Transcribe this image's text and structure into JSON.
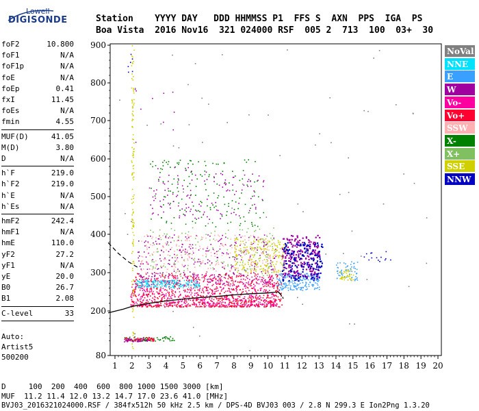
{
  "logo": {
    "top": "Lowell",
    "main": "DIGISONDE"
  },
  "header": {
    "line1": "Station    YYYY DAY   DDD HHMMSS P1  FFS S  AXN  PPS  IGA  PS",
    "line2": "Boa Vista  2016 Nov16  321 024000 RSF  005 2  713  100  03+  30"
  },
  "params": {
    "group1": [
      {
        "name": "foF2",
        "value": "10.800"
      },
      {
        "name": "foF1",
        "value": "N/A"
      },
      {
        "name": "foF1p",
        "value": "N/A"
      },
      {
        "name": "foE",
        "value": "N/A"
      },
      {
        "name": "foEp",
        "value": "0.41"
      },
      {
        "name": "fxI",
        "value": "11.45"
      },
      {
        "name": "foEs",
        "value": "N/A"
      },
      {
        "name": "fmin",
        "value": "4.55"
      }
    ],
    "group2": [
      {
        "name": "MUF(D)",
        "value": "41.05"
      },
      {
        "name": "M(D)",
        "value": "3.80"
      },
      {
        "name": "D",
        "value": "N/A"
      }
    ],
    "group3": [
      {
        "name": "h`F",
        "value": "219.0"
      },
      {
        "name": "h`F2",
        "value": "219.0"
      },
      {
        "name": "h`E",
        "value": "N/A"
      },
      {
        "name": "h`Es",
        "value": "N/A"
      }
    ],
    "group4": [
      {
        "name": "hmF2",
        "value": "242.4"
      },
      {
        "name": "hmF1",
        "value": "N/A"
      },
      {
        "name": "hmE",
        "value": "110.0"
      },
      {
        "name": "yF2",
        "value": "27.2"
      },
      {
        "name": "yF1",
        "value": "N/A"
      },
      {
        "name": "yE",
        "value": "20.0"
      },
      {
        "name": "B0",
        "value": "26.7"
      },
      {
        "name": "B1",
        "value": "2.08"
      }
    ],
    "group5": [
      {
        "name": "C-level",
        "value": "33"
      }
    ]
  },
  "autoscaling": {
    "line1": "Auto:",
    "line2": "Artist5",
    "line3": "500200"
  },
  "footer": {
    "d_line": "D     100  200  400  600  800 1000 1500 3000 [km]",
    "muf_line": "MUF  11.2 11.4 12.0 13.2 14.7 17.0 23.6 41.0 [MHz]",
    "info_line": "BVJ03_2016321024000.RSF / 384fx512h 50 kHz 2.5 km / DPS-4D BVJ03 003 / 2.8 N 299.3 E Ion2Png 1.3.20"
  },
  "legend": [
    {
      "label": "NoVal",
      "bg": "#808080",
      "fg": "#ffffff"
    },
    {
      "label": "NNE",
      "bg": "#00e0ff",
      "fg": "#ffffff"
    },
    {
      "label": "E",
      "bg": "#3aa0ff",
      "fg": "#ffffff"
    },
    {
      "label": "W",
      "bg": "#a000a0",
      "fg": "#ffffff"
    },
    {
      "label": "Vo-",
      "bg": "#ff00a0",
      "fg": "#ffffff"
    },
    {
      "label": "Vo+",
      "bg": "#ff0030",
      "fg": "#ffffff"
    },
    {
      "label": "SSW",
      "bg": "#ffb0b0",
      "fg": "#ffffff"
    },
    {
      "label": "X-",
      "bg": "#008000",
      "fg": "#ffffff"
    },
    {
      "label": "X+",
      "bg": "#80c060",
      "fg": "#ffffff"
    },
    {
      "label": "SSE",
      "bg": "#d0d000",
      "fg": "#ffffff"
    },
    {
      "label": "NNW",
      "bg": "#0000c0",
      "fg": "#ffffff"
    }
  ],
  "chart_data": {
    "type": "scatter",
    "xlabel": "",
    "ylabel": "",
    "xlim": [
      0.6,
      20.1
    ],
    "ylim": [
      80,
      900
    ],
    "x_ticks": [
      "1",
      "2",
      "3",
      "4",
      "5",
      "6",
      "7",
      "8",
      "9",
      "10",
      "11",
      "12",
      "13",
      "14",
      "15",
      "16",
      "17",
      "18",
      "19",
      "20"
    ],
    "y_ticks": [
      "80",
      "200",
      "300",
      "400",
      "500",
      "600",
      "700",
      "800",
      "900"
    ],
    "grid": false,
    "legend_placement": "right",
    "trace_curve": {
      "x": [
        0.6,
        1.5,
        2.0,
        3.0,
        4.0,
        5.0,
        6.0,
        7.0,
        8.0,
        9.0,
        10.0,
        10.6,
        10.8
      ],
      "y": [
        195,
        205,
        212,
        220,
        226,
        231,
        235,
        238,
        242,
        245,
        247,
        250,
        240
      ]
    },
    "dashed_curves": [
      {
        "x": [
          0.6,
          1.2,
          1.8,
          2.4
        ],
        "y": [
          378,
          350,
          328,
          312
        ]
      },
      {
        "x": [
          10.6,
          10.75,
          10.85,
          10.9
        ],
        "y": [
          250,
          244,
          238,
          232
        ]
      }
    ],
    "clusters": [
      {
        "color": "#ff0030",
        "xr": [
          1.9,
          10.8
        ],
        "yr": [
          212,
          300
        ],
        "n": 900
      },
      {
        "color": "#ff00a0",
        "xr": [
          1.9,
          10.5
        ],
        "yr": [
          215,
          295
        ],
        "n": 500
      },
      {
        "color": "#00e0ff",
        "xr": [
          2.2,
          6.0
        ],
        "yr": [
          262,
          282
        ],
        "n": 180
      },
      {
        "color": "#3aa0ff",
        "xr": [
          10.5,
          13.0
        ],
        "yr": [
          255,
          300
        ],
        "n": 200
      },
      {
        "color": "#a000a0",
        "xr": [
          2.3,
          10.5
        ],
        "yr": [
          270,
          400
        ],
        "n": 300
      },
      {
        "color": "#a000a0",
        "xr": [
          10.8,
          13.0
        ],
        "yr": [
          290,
          400
        ],
        "n": 200
      },
      {
        "color": "#0000c0",
        "xr": [
          10.8,
          13.2
        ],
        "yr": [
          280,
          380
        ],
        "n": 160
      },
      {
        "color": "#d0d000",
        "xr": [
          8.0,
          11.0
        ],
        "yr": [
          300,
          390
        ],
        "n": 200
      },
      {
        "color": "#ffb0b0",
        "xr": [
          2.5,
          10.5
        ],
        "yr": [
          300,
          400
        ],
        "n": 250
      },
      {
        "color": "#80c060",
        "xr": [
          3.0,
          10.5
        ],
        "yr": [
          290,
          420
        ],
        "n": 150
      },
      {
        "color": "#008000",
        "xr": [
          3.0,
          9.8
        ],
        "yr": [
          420,
          600
        ],
        "n": 160
      },
      {
        "color": "#a000a0",
        "xr": [
          3.0,
          9.8
        ],
        "yr": [
          440,
          580
        ],
        "n": 130
      },
      {
        "color": "#3aa0ff",
        "xr": [
          14.0,
          15.3
        ],
        "yr": [
          280,
          330
        ],
        "n": 60
      },
      {
        "color": "#d0d000",
        "xr": [
          14.2,
          15.0
        ],
        "yr": [
          280,
          310
        ],
        "n": 40
      },
      {
        "color": "#0000c0",
        "xr": [
          15.5,
          17.5
        ],
        "yr": [
          330,
          360
        ],
        "n": 14
      },
      {
        "color": "#008000",
        "xr": [
          1.5,
          4.5
        ],
        "yr": [
          120,
          132
        ],
        "n": 60
      },
      {
        "color": "#ff0030",
        "xr": [
          1.5,
          3.3
        ],
        "yr": [
          120,
          130
        ],
        "n": 60
      },
      {
        "color": "#a000a0",
        "xr": [
          1.5,
          3.0
        ],
        "yr": [
          118,
          128
        ],
        "n": 40
      },
      {
        "color": "#d0d000",
        "xr": [
          1.95,
          2.1
        ],
        "yr": [
          90,
          900
        ],
        "n": 130
      },
      {
        "color": "#0000c0",
        "xr": [
          1.7,
          2.0
        ],
        "yr": [
          820,
          900
        ],
        "n": 6
      },
      {
        "color": "#a000a0",
        "xr": [
          2.1,
          4.5
        ],
        "yr": [
          640,
          800
        ],
        "n": 10
      },
      {
        "color": "#808080",
        "xr": [
          1.2,
          19.5
        ],
        "yr": [
          80,
          900
        ],
        "n": 70
      }
    ]
  }
}
